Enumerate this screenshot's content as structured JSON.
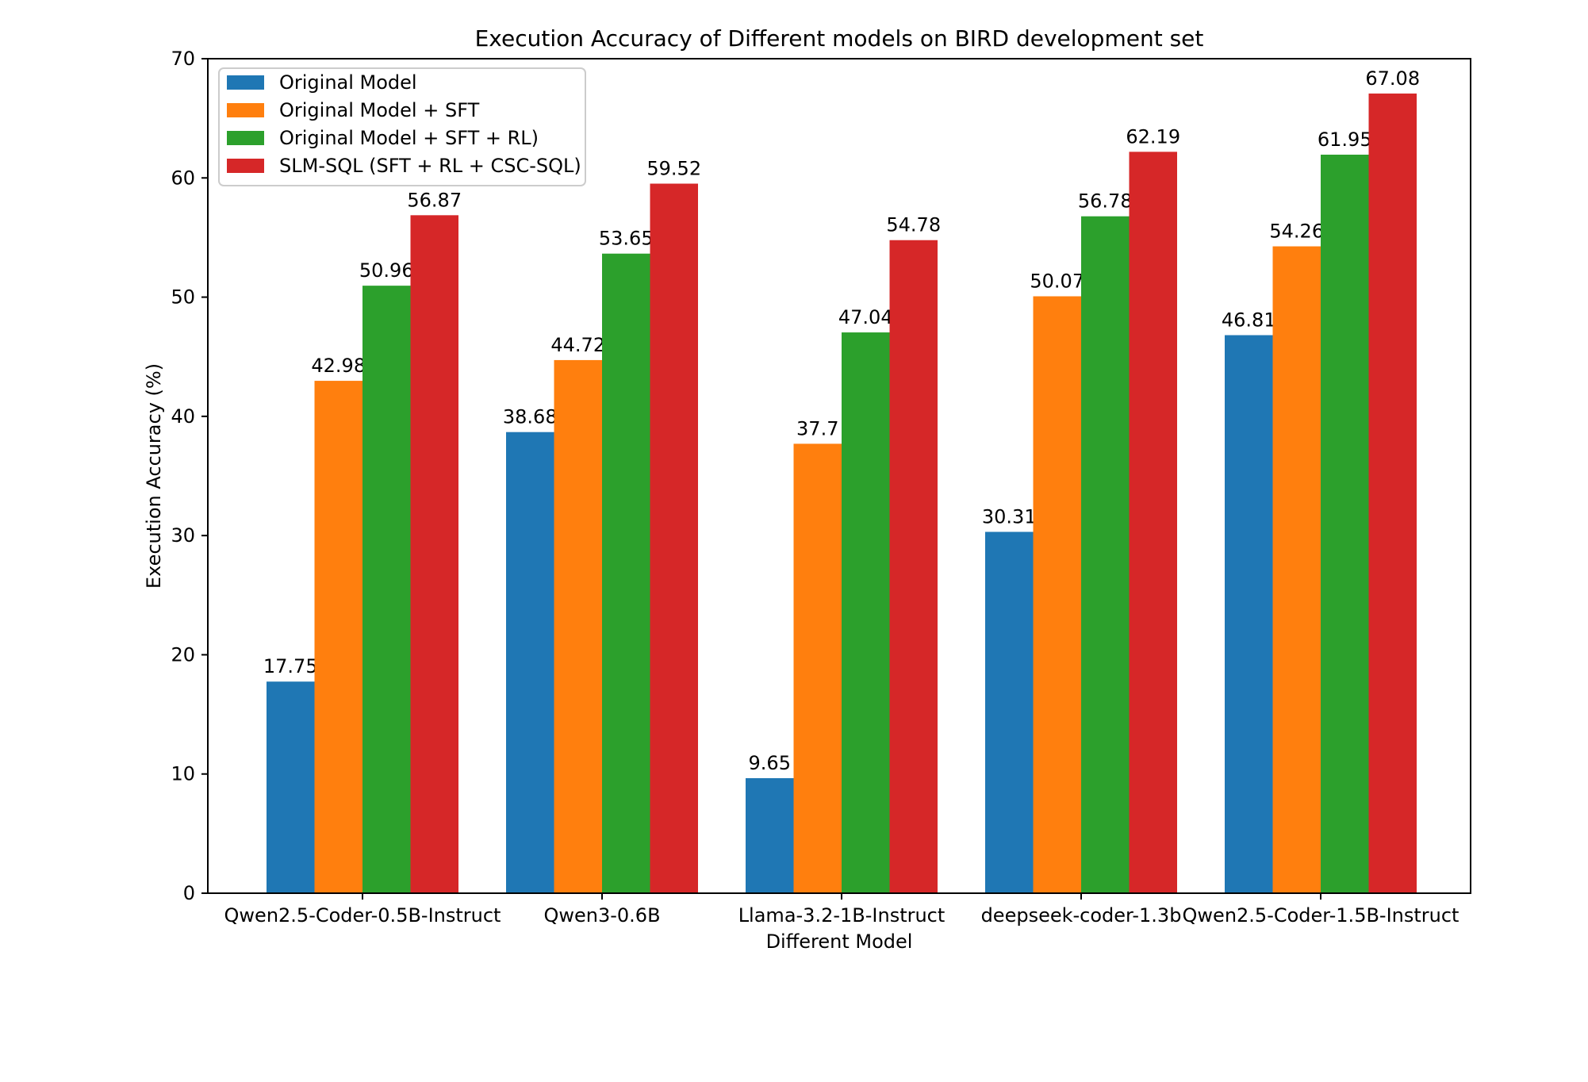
{
  "chart_data": {
    "type": "bar",
    "title": "Execution Accuracy of Different models on BIRD development set",
    "xlabel": "Different Model",
    "ylabel": "Execution Accuracy (%)",
    "ylim": [
      0,
      70
    ],
    "yticks": [
      0,
      10,
      20,
      30,
      40,
      50,
      60,
      70
    ],
    "grid": false,
    "legend_position": "top-left",
    "categories": [
      "Qwen2.5-Coder-0.5B-Instruct",
      "Qwen3-0.6B",
      "Llama-3.2-1B-Instruct",
      "deepseek-coder-1.3b",
      "Qwen2.5-Coder-1.5B-Instruct"
    ],
    "series": [
      {
        "name": "Original Model",
        "color": "#1f77b4",
        "values": [
          17.75,
          38.68,
          9.65,
          30.31,
          46.81
        ],
        "labels": [
          "17.75",
          "38.68",
          "9.65",
          "30.31",
          "46.81"
        ]
      },
      {
        "name": "Original Model + SFT",
        "color": "#ff7f0e",
        "values": [
          42.98,
          44.72,
          37.7,
          50.07,
          54.26
        ],
        "labels": [
          "42.98",
          "44.72",
          "37.7",
          "50.07",
          "54.26"
        ]
      },
      {
        "name": "Original Model + SFT + RL)",
        "color": "#2ca02c",
        "values": [
          50.96,
          53.65,
          47.04,
          56.78,
          61.95
        ],
        "labels": [
          "50.96",
          "53.65",
          "47.04",
          "56.78",
          "61.95"
        ]
      },
      {
        "name": "SLM-SQL (SFT + RL + CSC-SQL)",
        "color": "#d62728",
        "values": [
          56.87,
          59.52,
          54.78,
          62.19,
          67.08
        ],
        "labels": [
          "56.87",
          "59.52",
          "54.78",
          "62.19",
          "67.08"
        ]
      }
    ]
  }
}
